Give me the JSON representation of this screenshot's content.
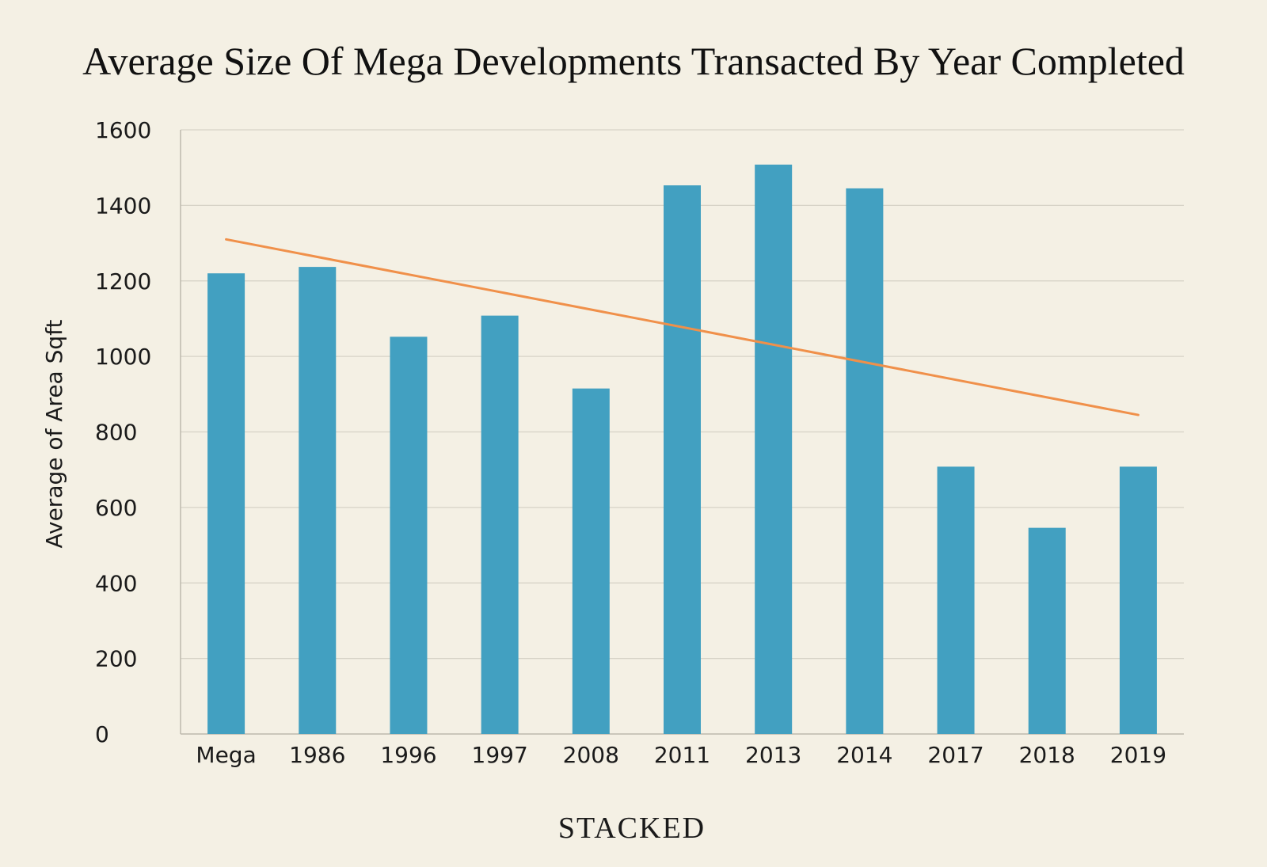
{
  "chart_data": {
    "type": "bar",
    "title": "Average Size Of Mega Developments Transacted By Year Completed",
    "xlabel": "",
    "ylabel": "Average of Area Sqft",
    "ylim": [
      0,
      1600
    ],
    "yticks": [
      0,
      200,
      400,
      600,
      800,
      1000,
      1200,
      1400,
      1600
    ],
    "grid": true,
    "categories": [
      "Mega",
      "1986",
      "1996",
      "1997",
      "2008",
      "2011",
      "2013",
      "2014",
      "2017",
      "2018",
      "2019"
    ],
    "series": [
      {
        "name": "Average of Area Sqft",
        "values": [
          1220,
          1237,
          1052,
          1108,
          915,
          1453,
          1508,
          1445,
          708,
          546,
          708
        ],
        "color": "#42a0c1"
      }
    ],
    "trendline": {
      "type": "linear",
      "start_value": 1310,
      "end_value": 845,
      "color": "#f0904a"
    }
  },
  "branding": {
    "label": "STACKED"
  },
  "colors": {
    "background": "#f4f0e4",
    "grid": "#d6d2c6",
    "axis": "#bdb9ad"
  }
}
